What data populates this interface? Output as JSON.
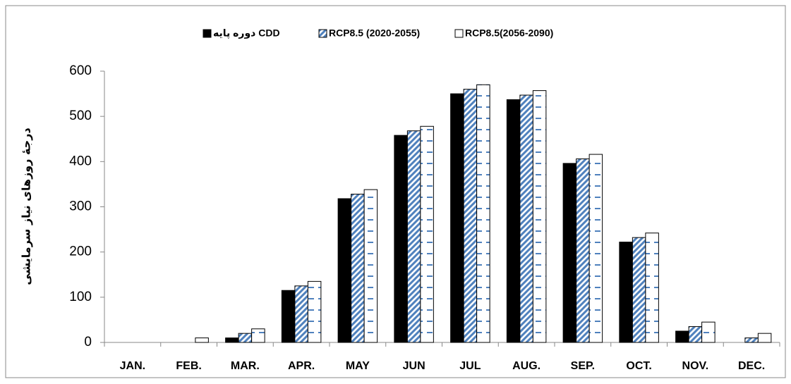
{
  "chart_data": {
    "type": "bar",
    "y_label": "درجهٔ روزهای نیاز سرمایشی",
    "categories": [
      "JAN.",
      "FEB.",
      "MAR.",
      "APR.",
      "MAY",
      "JUN",
      "JUL",
      "AUG.",
      "SEP.",
      "OCT.",
      "NOV.",
      "DEC."
    ],
    "series": [
      {
        "name": "دوره پایه CDD",
        "color": "#000000",
        "values": [
          0,
          0,
          10,
          115,
          318,
          458,
          550,
          537,
          396,
          222,
          25,
          0
        ]
      },
      {
        "name": "RCP8.5 (2020-2055)",
        "color": "#4f81bd",
        "values": [
          0,
          0,
          20,
          125,
          328,
          468,
          560,
          547,
          406,
          232,
          35,
          10
        ]
      },
      {
        "name": "RCP8.5(2056-2090)",
        "color": "#4f81bd",
        "values": [
          0,
          10,
          30,
          135,
          338,
          478,
          570,
          557,
          416,
          242,
          45,
          20
        ]
      }
    ],
    "ylim": [
      0,
      600
    ],
    "yticks": [
      0,
      100,
      200,
      300,
      400,
      500,
      600
    ],
    "grid": false
  }
}
